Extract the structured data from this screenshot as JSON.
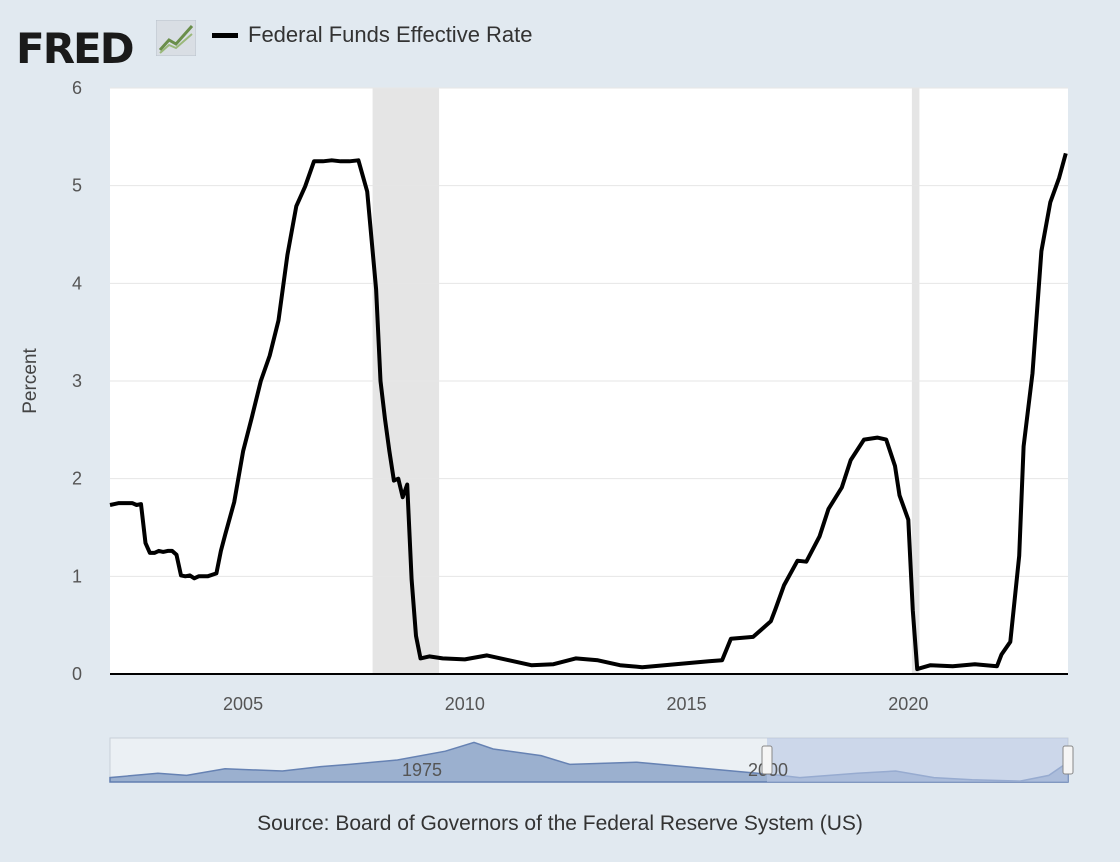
{
  "header": {
    "logo_text": "FRED",
    "logo_icon": "chart-trend-icon",
    "legend_label": "Federal Funds Effective Rate"
  },
  "colors": {
    "background": "#e1e9f0",
    "plot_background": "#ffffff",
    "line": "#000000",
    "recession": "#e5e5e5",
    "navigator_fill": "#8ea6c9",
    "navigator_selected": "#b7c7e3"
  },
  "source": "Source: Board of Governors of the Federal Reserve System (US)",
  "navigator": {
    "labels": [
      "1975",
      "2000"
    ]
  },
  "chart_data": {
    "type": "line",
    "title": "",
    "xlabel": "",
    "ylabel": "Percent",
    "xlim": [
      2002.0,
      2023.6
    ],
    "ylim": [
      0,
      6
    ],
    "x_ticks": [
      2005,
      2010,
      2015,
      2020
    ],
    "y_ticks": [
      0,
      1,
      2,
      3,
      4,
      5,
      6
    ],
    "grid": true,
    "legend": "top-left",
    "recessions": [
      [
        2007.92,
        2009.42
      ],
      [
        2020.08,
        2020.25
      ]
    ],
    "series": [
      {
        "name": "Federal Funds Effective Rate",
        "x": [
          2002.0,
          2002.1,
          2002.2,
          2002.3,
          2002.4,
          2002.5,
          2002.6,
          2002.7,
          2002.8,
          2002.9,
          2003.0,
          2003.1,
          2003.2,
          2003.3,
          2003.4,
          2003.5,
          2003.6,
          2003.7,
          2003.8,
          2003.9,
          2004.0,
          2004.2,
          2004.4,
          2004.5,
          2004.6,
          2004.8,
          2005.0,
          2005.2,
          2005.4,
          2005.6,
          2005.8,
          2006.0,
          2006.2,
          2006.4,
          2006.6,
          2006.8,
          2007.0,
          2007.2,
          2007.4,
          2007.6,
          2007.8,
          2008.0,
          2008.1,
          2008.2,
          2008.3,
          2008.4,
          2008.5,
          2008.6,
          2008.7,
          2008.8,
          2008.9,
          2009.0,
          2009.2,
          2009.5,
          2010.0,
          2010.5,
          2011.0,
          2011.5,
          2012.0,
          2012.5,
          2013.0,
          2013.5,
          2014.0,
          2014.5,
          2015.0,
          2015.5,
          2015.8,
          2016.0,
          2016.5,
          2016.9,
          2017.0,
          2017.2,
          2017.5,
          2017.7,
          2018.0,
          2018.2,
          2018.5,
          2018.7,
          2019.0,
          2019.3,
          2019.5,
          2019.7,
          2019.8,
          2020.0,
          2020.1,
          2020.2,
          2020.5,
          2021.0,
          2021.5,
          2022.0,
          2022.1,
          2022.3,
          2022.5,
          2022.6,
          2022.8,
          2023.0,
          2023.2,
          2023.4,
          2023.55
        ],
        "y": [
          1.73,
          1.74,
          1.75,
          1.75,
          1.75,
          1.75,
          1.73,
          1.74,
          1.34,
          1.24,
          1.24,
          1.26,
          1.25,
          1.26,
          1.26,
          1.22,
          1.01,
          1.0,
          1.01,
          0.98,
          1.0,
          1.0,
          1.03,
          1.26,
          1.43,
          1.76,
          2.28,
          2.63,
          3.0,
          3.26,
          3.62,
          4.29,
          4.79,
          4.99,
          5.25,
          5.25,
          5.26,
          5.25,
          5.25,
          5.26,
          4.94,
          3.94,
          3.0,
          2.61,
          2.28,
          1.98,
          2.0,
          1.81,
          1.94,
          0.97,
          0.39,
          0.16,
          0.18,
          0.16,
          0.15,
          0.19,
          0.14,
          0.09,
          0.1,
          0.16,
          0.14,
          0.09,
          0.07,
          0.09,
          0.11,
          0.13,
          0.14,
          0.36,
          0.38,
          0.54,
          0.66,
          0.91,
          1.16,
          1.15,
          1.41,
          1.69,
          1.91,
          2.19,
          2.4,
          2.42,
          2.4,
          2.13,
          1.83,
          1.58,
          0.65,
          0.05,
          0.09,
          0.08,
          0.1,
          0.08,
          0.2,
          0.33,
          1.21,
          2.33,
          3.08,
          4.33,
          4.83,
          5.08,
          5.33
        ]
      }
    ]
  }
}
